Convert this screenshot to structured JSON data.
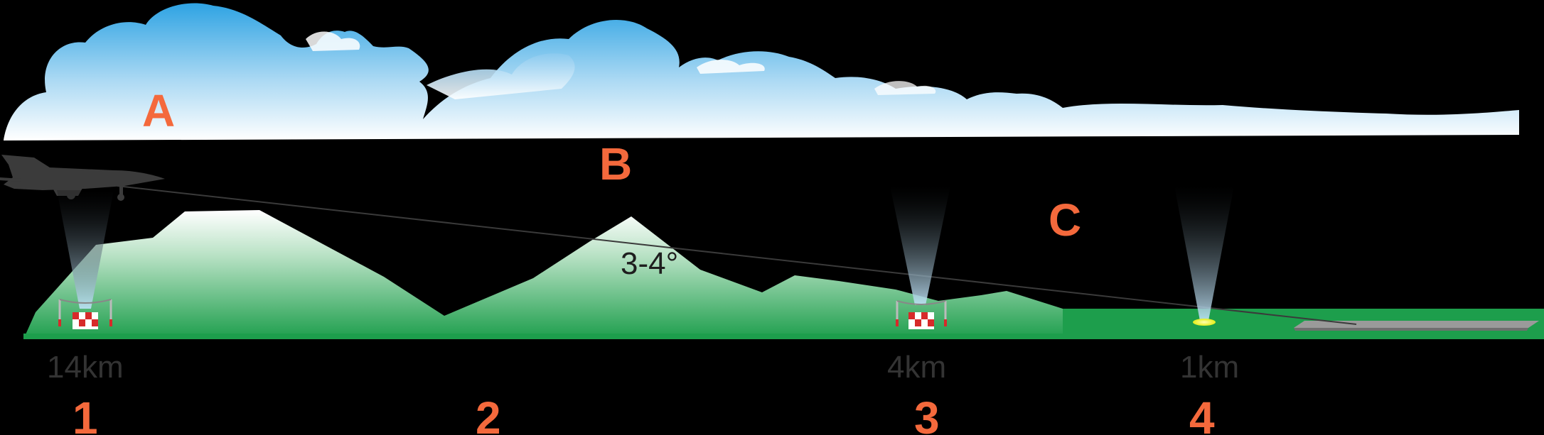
{
  "diagram": {
    "zones": [
      {
        "id": "A",
        "label": "A"
      },
      {
        "id": "B",
        "label": "B"
      },
      {
        "id": "C",
        "label": "C"
      }
    ],
    "glide_angle": "3-4°",
    "beacons": [
      {
        "distance": "14km",
        "stage": "1"
      },
      {
        "distance": "",
        "stage": "2"
      },
      {
        "distance": "4km",
        "stage": "3"
      },
      {
        "distance": "1km",
        "stage": "4"
      }
    ],
    "icons": [
      "aircraft-icon",
      "beacon-marker-icon",
      "runway-light-icon"
    ],
    "colors": {
      "background": "#000000",
      "label_accent": "#f4693c",
      "cloud_top": "#3aa7e4",
      "terrain": "#20a650",
      "light_cone": "#8fc6ea"
    }
  }
}
